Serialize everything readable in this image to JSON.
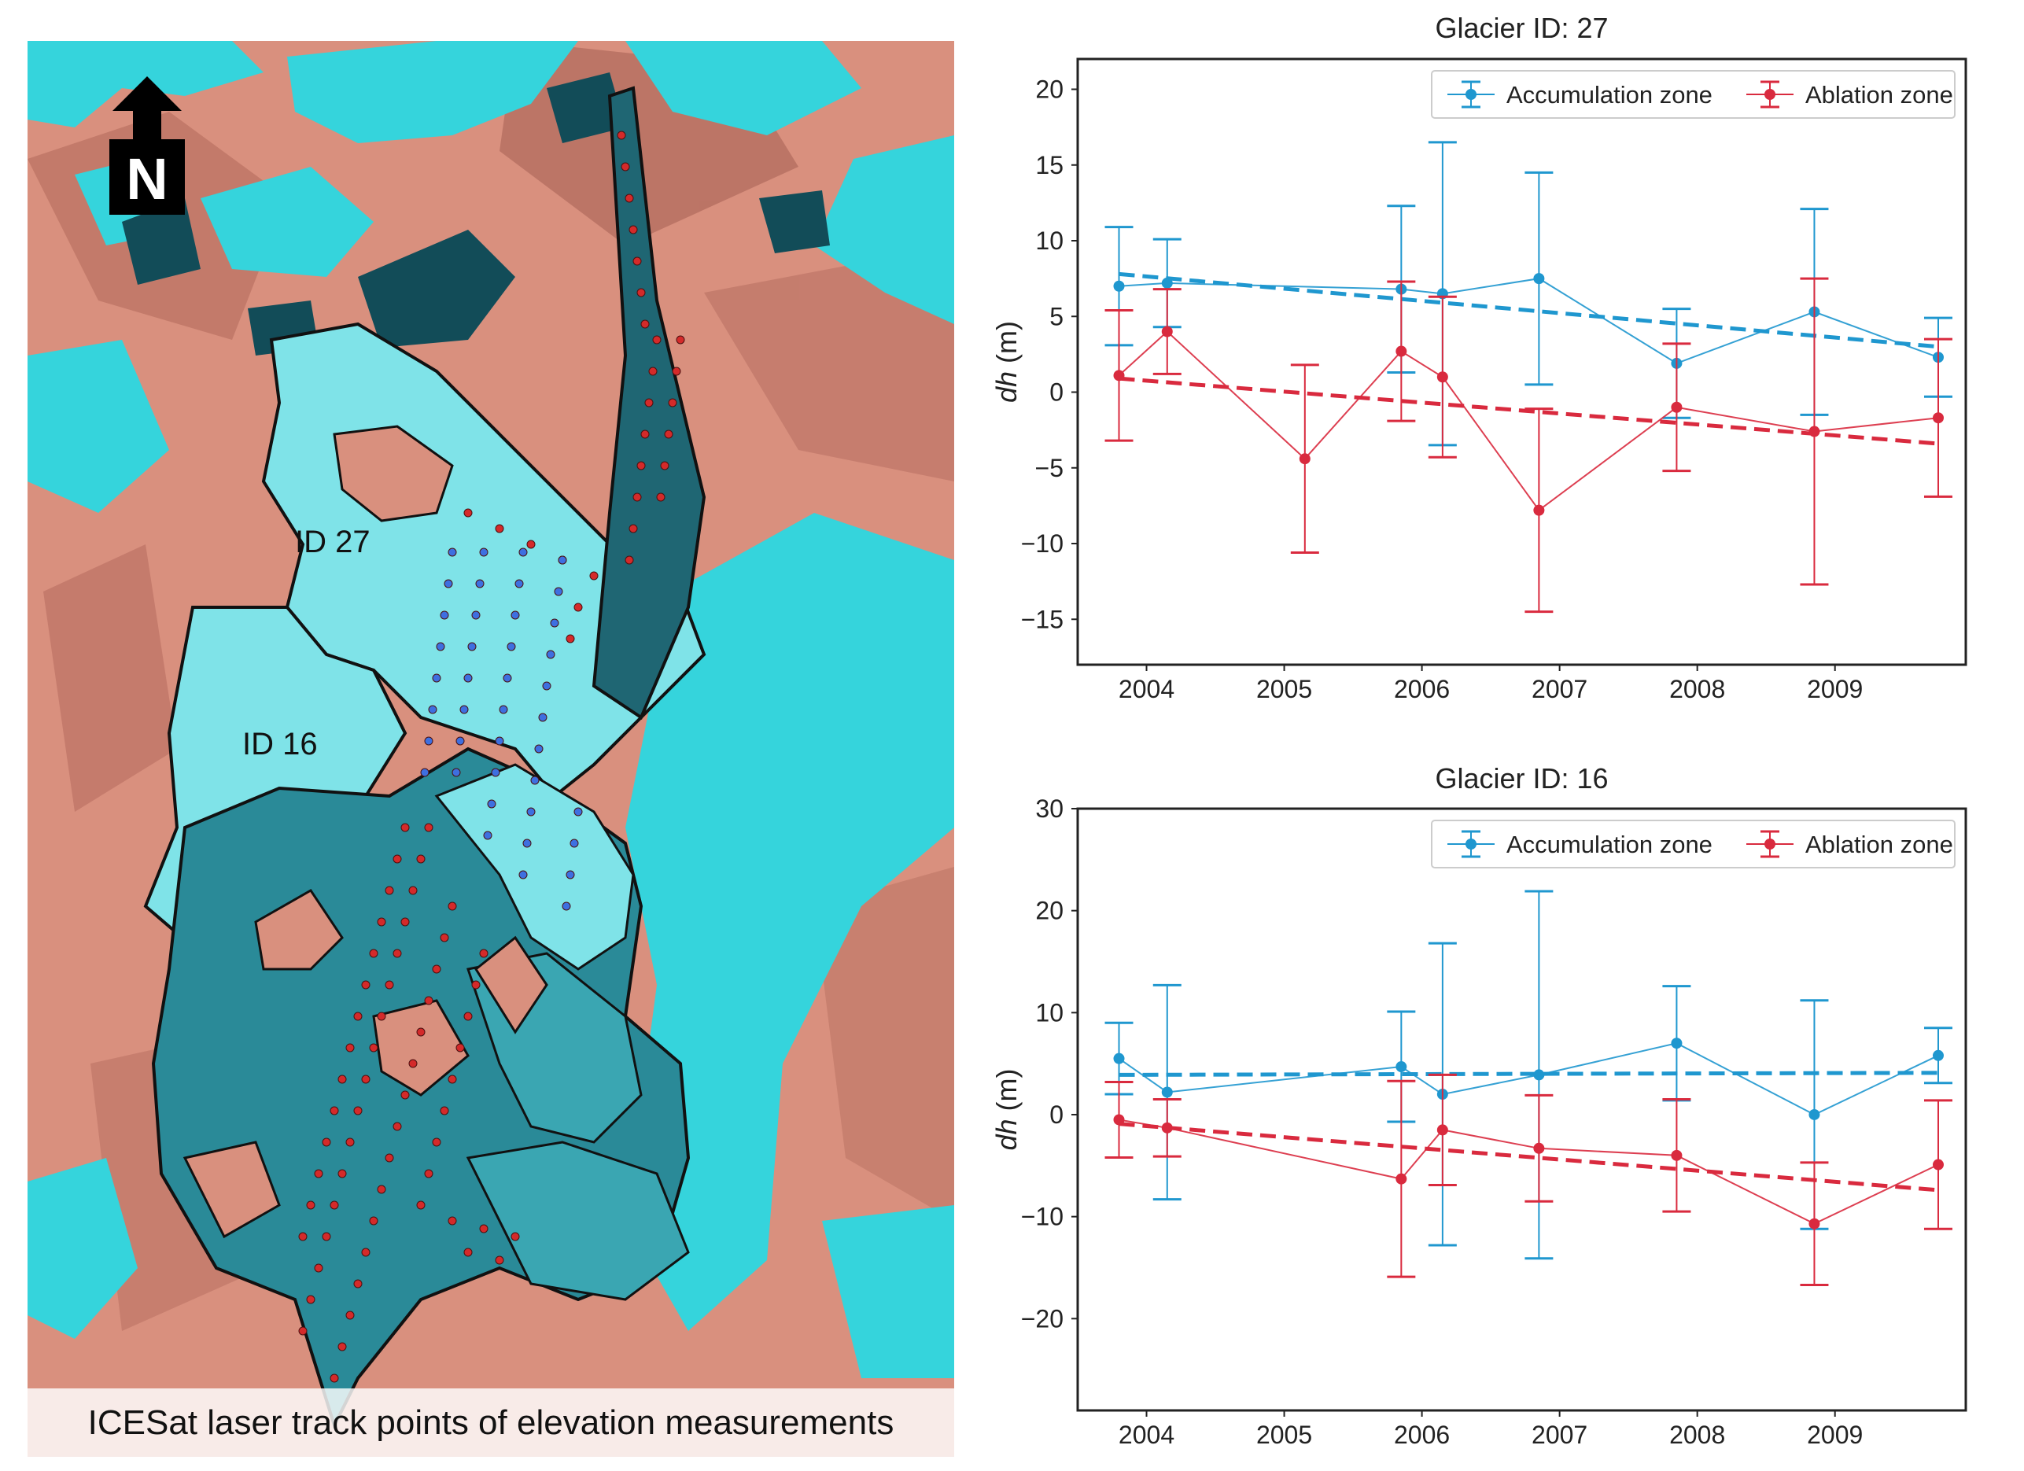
{
  "map": {
    "caption": "ICESat laser track points of elevation measurements",
    "north_label": "N",
    "labels": [
      "ID 27",
      "ID 16"
    ],
    "colors": {
      "ice": "#35d4dc",
      "rock": "#d9907e",
      "shadow": "#124c58",
      "track_red": "#d42a2a",
      "track_blue": "#3e6fe0",
      "outline": "#111111"
    }
  },
  "chart_data": [
    {
      "type": "line",
      "title": "Glacier ID: 27",
      "xlabel": "",
      "ylabel": "dh (m)",
      "ylabel_italic": "dh",
      "ylabel_rest": " (m)",
      "xlim": [
        2003.5,
        2009.95
      ],
      "ylim": [
        -18,
        22
      ],
      "xticks": [
        2004,
        2005,
        2006,
        2007,
        2008,
        2009
      ],
      "xtick_labels": [
        "2004",
        "2005",
        "2006",
        "2007",
        "2008",
        "2009"
      ],
      "yticks": [
        -15,
        -10,
        -5,
        0,
        5,
        10,
        15,
        20
      ],
      "ytick_labels": [
        "−15",
        "−10",
        "−5",
        "0",
        "5",
        "10",
        "15",
        "20"
      ],
      "legend_position": "top-right",
      "series": [
        {
          "name": "Accumulation zone",
          "color": "#1f97cf",
          "x": [
            2003.8,
            2004.15,
            2005.85,
            2006.15,
            2006.85,
            2007.85,
            2008.85,
            2009.75
          ],
          "y": [
            7.0,
            7.2,
            6.8,
            6.5,
            7.5,
            1.9,
            5.3,
            2.3
          ],
          "yerr": [
            3.9,
            2.9,
            5.5,
            10.0,
            7.0,
            3.6,
            6.8,
            2.6
          ],
          "trend": {
            "x": [
              2003.8,
              2009.75
            ],
            "y": [
              7.8,
              3.0
            ]
          }
        },
        {
          "name": "Ablation zone",
          "color": "#d92a3e",
          "x": [
            2003.8,
            2004.15,
            2005.15,
            2005.85,
            2006.15,
            2006.85,
            2007.85,
            2008.85,
            2009.75
          ],
          "y": [
            1.1,
            4.0,
            -4.4,
            2.7,
            1.0,
            -7.8,
            -1.0,
            -2.6,
            -1.7
          ],
          "yerr": [
            4.3,
            2.8,
            6.2,
            4.6,
            5.3,
            6.7,
            4.2,
            10.1,
            5.2
          ],
          "trend": {
            "x": [
              2003.8,
              2009.75
            ],
            "y": [
              0.9,
              -3.4
            ]
          }
        }
      ]
    },
    {
      "type": "line",
      "title": "Glacier ID: 16",
      "xlabel": "",
      "ylabel": "dh (m)",
      "ylabel_italic": "dh",
      "ylabel_rest": " (m)",
      "xlim": [
        2003.5,
        2009.95
      ],
      "ylim": [
        -29,
        30
      ],
      "xticks": [
        2004,
        2005,
        2006,
        2007,
        2008,
        2009
      ],
      "xtick_labels": [
        "2004",
        "2005",
        "2006",
        "2007",
        "2008",
        "2009"
      ],
      "yticks": [
        -20,
        -10,
        0,
        10,
        20,
        30
      ],
      "ytick_labels": [
        "−20",
        "−10",
        "0",
        "10",
        "20",
        "30"
      ],
      "legend_position": "top-right",
      "series": [
        {
          "name": "Accumulation zone",
          "color": "#1f97cf",
          "x": [
            2003.8,
            2004.15,
            2005.85,
            2006.15,
            2006.85,
            2007.85,
            2008.85,
            2009.75
          ],
          "y": [
            5.5,
            2.2,
            4.7,
            2.0,
            3.9,
            7.0,
            0.0,
            5.8
          ],
          "yerr": [
            3.5,
            10.5,
            5.4,
            14.8,
            18.0,
            5.6,
            11.2,
            2.7
          ],
          "trend": {
            "x": [
              2003.8,
              2009.75
            ],
            "y": [
              3.9,
              4.1
            ]
          }
        },
        {
          "name": "Ablation zone",
          "color": "#d92a3e",
          "x": [
            2003.8,
            2004.15,
            2005.85,
            2006.15,
            2006.85,
            2007.85,
            2008.85,
            2009.75
          ],
          "y": [
            -0.5,
            -1.3,
            -6.3,
            -1.5,
            -3.3,
            -4.0,
            -10.7,
            -4.9
          ],
          "yerr": [
            3.7,
            2.8,
            9.6,
            5.4,
            5.2,
            5.5,
            6.0,
            6.3
          ],
          "trend": {
            "x": [
              2003.8,
              2009.75
            ],
            "y": [
              -0.9,
              -7.4
            ]
          }
        }
      ]
    }
  ]
}
